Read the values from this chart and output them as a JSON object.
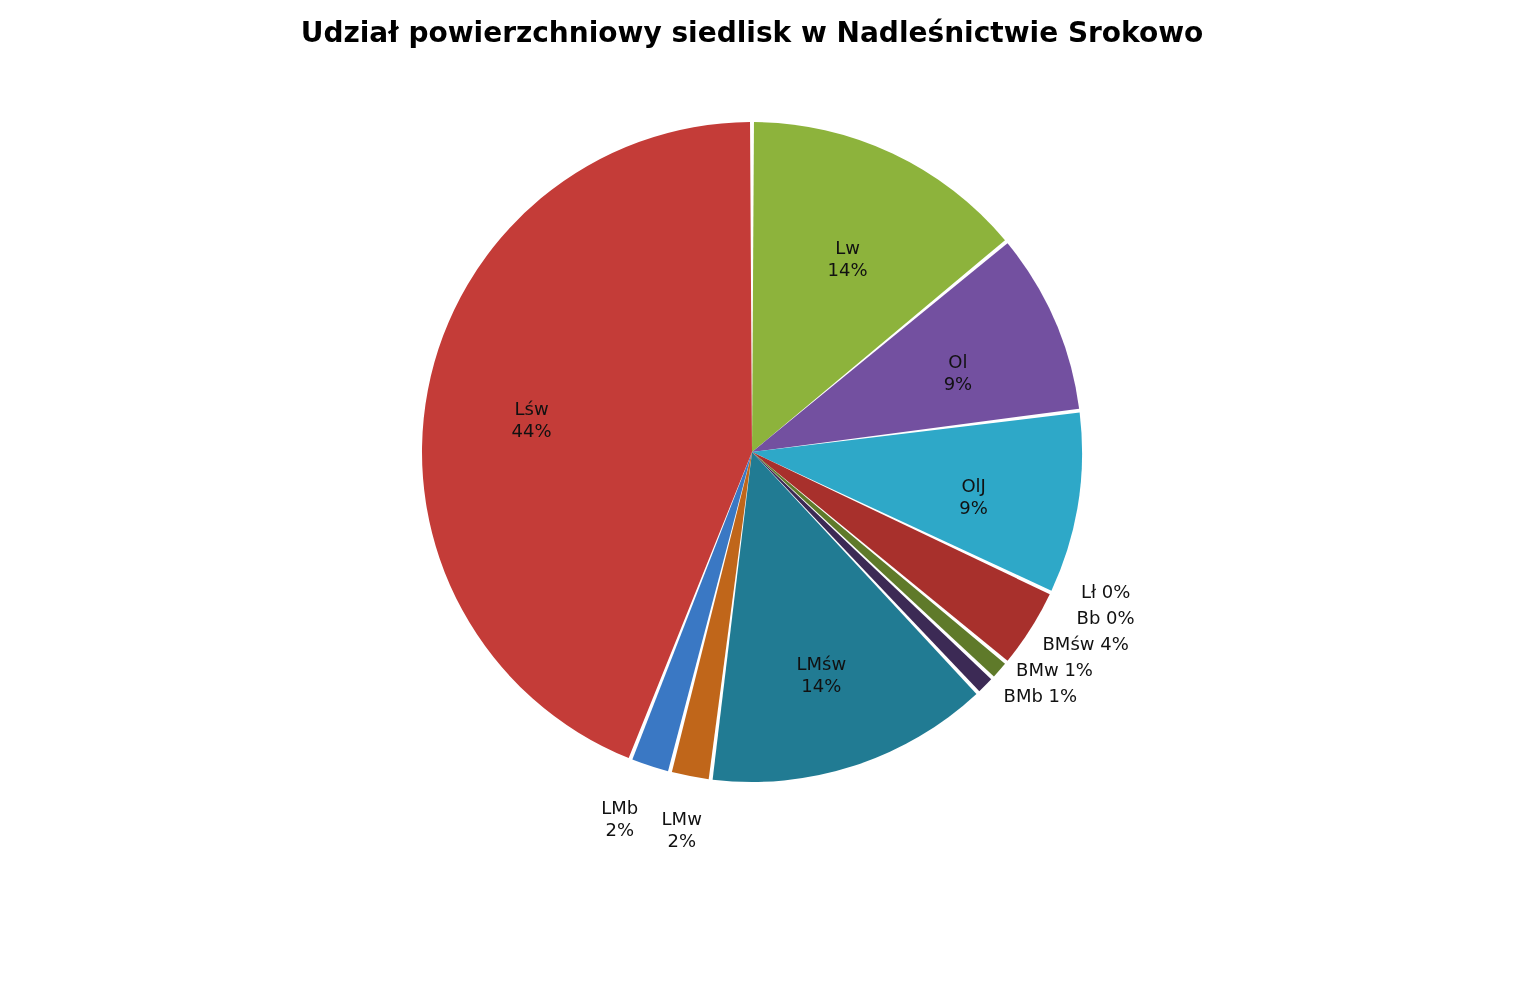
{
  "chart_data": {
    "type": "pie",
    "title": "Udział powierzchniowy siedlisk w Nadleśnictwie Srokowo",
    "categories": [
      "Lw",
      "Ol",
      "OlJ",
      "Lł",
      "Bb",
      "BMśw",
      "BMw",
      "BMb",
      "LMśw",
      "LMw",
      "LMb",
      "Lśw"
    ],
    "values": [
      14,
      9,
      9,
      0,
      0,
      4,
      1,
      1,
      14,
      2,
      2,
      44
    ],
    "value_labels": [
      "14%",
      "9%",
      "9%",
      "0%",
      "0%",
      "4%",
      "1%",
      "1%",
      "14%",
      "2%",
      "2%",
      "44%"
    ],
    "colors": [
      "#8db33c",
      "#7350a0",
      "#2ea8c8",
      "#e07b1a",
      "#1f3f6e",
      "#a8302c",
      "#5f7a2a",
      "#3c2a55",
      "#217b93",
      "#c0661a",
      "#3a78c4",
      "#c43c38"
    ],
    "legend": false
  }
}
